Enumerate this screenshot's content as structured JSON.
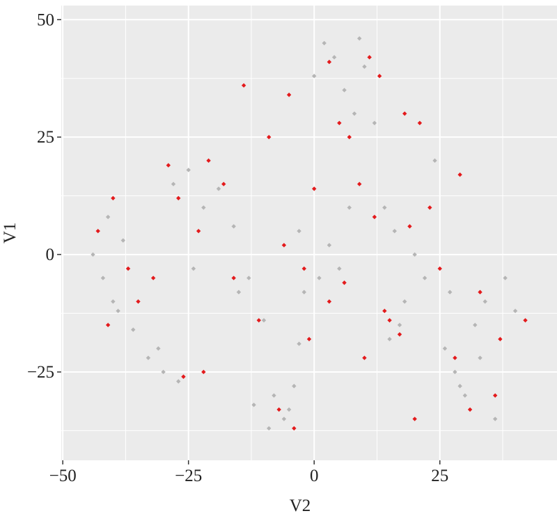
{
  "chart_data": {
    "type": "scatter",
    "x_label": "V2",
    "y_label": "V1",
    "xlim": [
      -50.3,
      48.3
    ],
    "ylim": [
      -43.8,
      53
    ],
    "xticks": [
      {
        "value": -50,
        "label": "−50"
      },
      {
        "value": -25,
        "label": "−25"
      },
      0,
      25
    ],
    "yticks": [
      {
        "value": -25,
        "label": "−25"
      },
      0,
      25,
      50
    ],
    "grid": true,
    "series": [
      {
        "color": "#b5b5b5",
        "x": [
          -44,
          -42,
          -40,
          -38,
          -41,
          -39,
          -36,
          -33,
          -30,
          -27,
          -28,
          -25,
          -22,
          -19,
          -16,
          -13,
          -10,
          -8,
          -6,
          -4,
          -2,
          0,
          2,
          4,
          6,
          8,
          10,
          12,
          14,
          16,
          18,
          20,
          22,
          24,
          26,
          28,
          30,
          32,
          34,
          36,
          38,
          40,
          -12,
          -9,
          -5,
          -3,
          1,
          3,
          5,
          7,
          -15,
          15,
          17,
          29,
          33,
          27,
          -31,
          -24,
          -3,
          9
        ],
        "values": [
          0,
          -5,
          -10,
          3,
          8,
          -12,
          -16,
          -22,
          -25,
          -27,
          15,
          18,
          10,
          14,
          6,
          -5,
          -14,
          -30,
          -35,
          -28,
          -8,
          38,
          45,
          42,
          35,
          30,
          40,
          28,
          10,
          5,
          -10,
          0,
          -5,
          20,
          -20,
          -25,
          -30,
          -15,
          -10,
          -35,
          -5,
          -12,
          -32,
          -37,
          -33,
          5,
          -5,
          2,
          -3,
          10,
          -8,
          -18,
          -15,
          -28,
          -22,
          -8,
          -20,
          -3,
          -19,
          46
        ]
      },
      {
        "color": "#e31a1c",
        "x": [
          -43,
          -40,
          -37,
          -41,
          -35,
          -29,
          -27,
          -23,
          -21,
          -26,
          -22,
          -18,
          -14,
          -11,
          -7,
          -4,
          -2,
          -6,
          0,
          3,
          5,
          7,
          11,
          13,
          18,
          21,
          -9,
          -5,
          9,
          12,
          15,
          17,
          14,
          19,
          6,
          25,
          28,
          31,
          36,
          33,
          37,
          42,
          29,
          20,
          -1,
          3,
          -16,
          10,
          23,
          -32
        ],
        "values": [
          5,
          12,
          -3,
          -15,
          -10,
          19,
          12,
          5,
          20,
          -26,
          -25,
          15,
          36,
          -14,
          -33,
          -37,
          -3,
          2,
          14,
          41,
          28,
          25,
          42,
          38,
          30,
          28,
          25,
          34,
          15,
          8,
          -14,
          -17,
          -12,
          6,
          -6,
          -3,
          -22,
          -33,
          -30,
          -8,
          -18,
          -14,
          17,
          -35,
          -18,
          -10,
          -5,
          -22,
          10,
          -5
        ]
      }
    ]
  }
}
